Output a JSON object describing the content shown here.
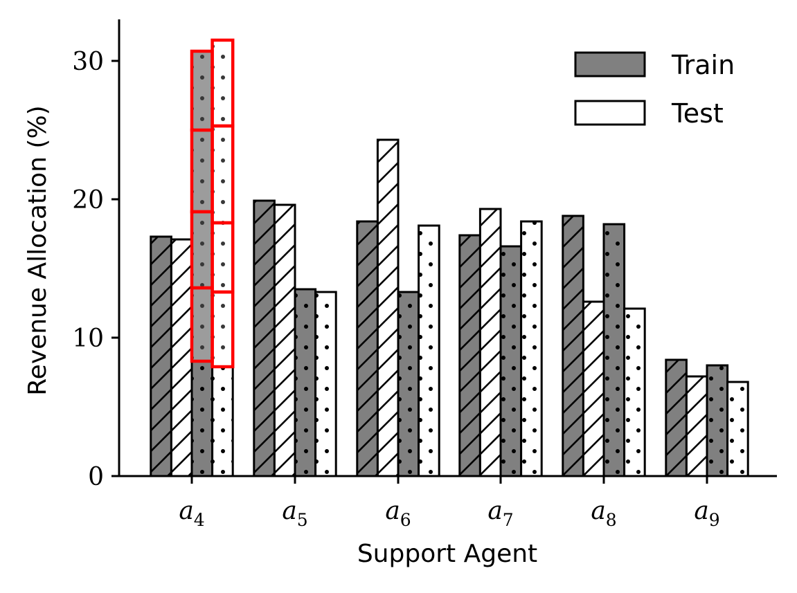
{
  "chart_data": {
    "type": "bar",
    "xlabel": "Support Agent",
    "ylabel": "Revenue Allocation (%)",
    "ylim": [
      0,
      33
    ],
    "yticks": [
      0,
      10,
      20,
      30
    ],
    "categories": [
      {
        "base": "a",
        "sub": "4"
      },
      {
        "base": "a",
        "sub": "5"
      },
      {
        "base": "a",
        "sub": "6"
      },
      {
        "base": "a",
        "sub": "7"
      },
      {
        "base": "a",
        "sub": "8"
      },
      {
        "base": "a",
        "sub": "9"
      }
    ],
    "legend": {
      "placement": "top-right",
      "entries": [
        {
          "label": "Train",
          "color": "#808080"
        },
        {
          "label": "Test",
          "color": "#ffffff"
        }
      ]
    },
    "series": [
      {
        "split": "Train",
        "hatch": "diagonal",
        "color": "#808080",
        "values": [
          17.3,
          19.9,
          18.4,
          17.4,
          18.8,
          8.4
        ]
      },
      {
        "split": "Test",
        "hatch": "diagonal",
        "color": "#ffffff",
        "values": [
          17.1,
          19.6,
          24.3,
          19.3,
          12.6,
          7.2
        ]
      },
      {
        "split": "Train",
        "hatch": "dots",
        "color": "#808080",
        "values": [
          30.7,
          13.5,
          13.3,
          16.6,
          18.2,
          8.0
        ]
      },
      {
        "split": "Test",
        "hatch": "dots",
        "color": "#ffffff",
        "values": [
          31.5,
          13.3,
          18.1,
          18.4,
          12.1,
          6.8
        ]
      }
    ],
    "highlight": {
      "category_index": 0,
      "series_indices": [
        2,
        3
      ],
      "color": "#ff0000",
      "segment_breaks": [
        [
          8.3,
          13.6,
          19.1,
          25.0,
          30.7
        ],
        [
          7.9,
          13.3,
          18.3,
          25.3,
          31.5
        ]
      ]
    },
    "grid": false
  }
}
